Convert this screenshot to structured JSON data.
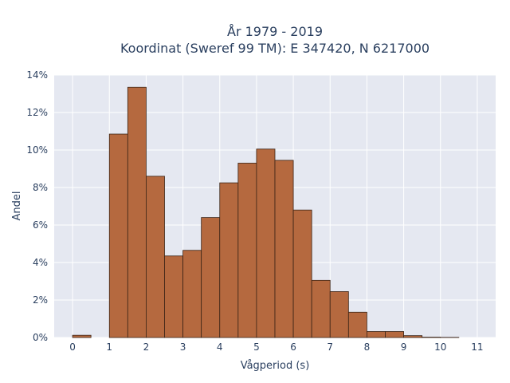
{
  "chart_data": {
    "type": "bar",
    "title_line1": "År 1979 - 2019",
    "title_line2": "Koordinat (Sweref 99 TM): E 347420, N 6217000",
    "xlabel": "Vågperiod (s)",
    "ylabel": "Andel",
    "xlim": [
      -0.5,
      11.5
    ],
    "ylim": [
      0,
      14
    ],
    "x_ticks": [
      0,
      1,
      2,
      3,
      4,
      5,
      6,
      7,
      8,
      9,
      10,
      11
    ],
    "y_ticks": [
      0,
      2,
      4,
      6,
      8,
      10,
      12,
      14
    ],
    "y_tick_suffix": "%",
    "bin_width": 0.5,
    "bins": [
      {
        "start": 0.0,
        "value": 0.12
      },
      {
        "start": 0.5,
        "value": 0.0
      },
      {
        "start": 1.0,
        "value": 10.85
      },
      {
        "start": 1.5,
        "value": 13.35
      },
      {
        "start": 2.0,
        "value": 8.6
      },
      {
        "start": 2.5,
        "value": 4.35
      },
      {
        "start": 3.0,
        "value": 4.65
      },
      {
        "start": 3.5,
        "value": 6.4
      },
      {
        "start": 4.0,
        "value": 8.25
      },
      {
        "start": 4.5,
        "value": 9.3
      },
      {
        "start": 5.0,
        "value": 10.05
      },
      {
        "start": 5.5,
        "value": 9.45
      },
      {
        "start": 6.0,
        "value": 6.8
      },
      {
        "start": 6.5,
        "value": 3.05
      },
      {
        "start": 7.0,
        "value": 2.45
      },
      {
        "start": 7.5,
        "value": 1.35
      },
      {
        "start": 8.0,
        "value": 0.32
      },
      {
        "start": 8.5,
        "value": 0.32
      },
      {
        "start": 9.0,
        "value": 0.1
      },
      {
        "start": 9.5,
        "value": 0.02
      },
      {
        "start": 10.0,
        "value": 0.01
      }
    ],
    "grid": true,
    "colors": {
      "bar_fill": "#b5693f",
      "bar_stroke": "#3b2416",
      "plot_background": "#e5e8f1",
      "grid": "#ffffff",
      "text": "#2a3f5f"
    }
  }
}
